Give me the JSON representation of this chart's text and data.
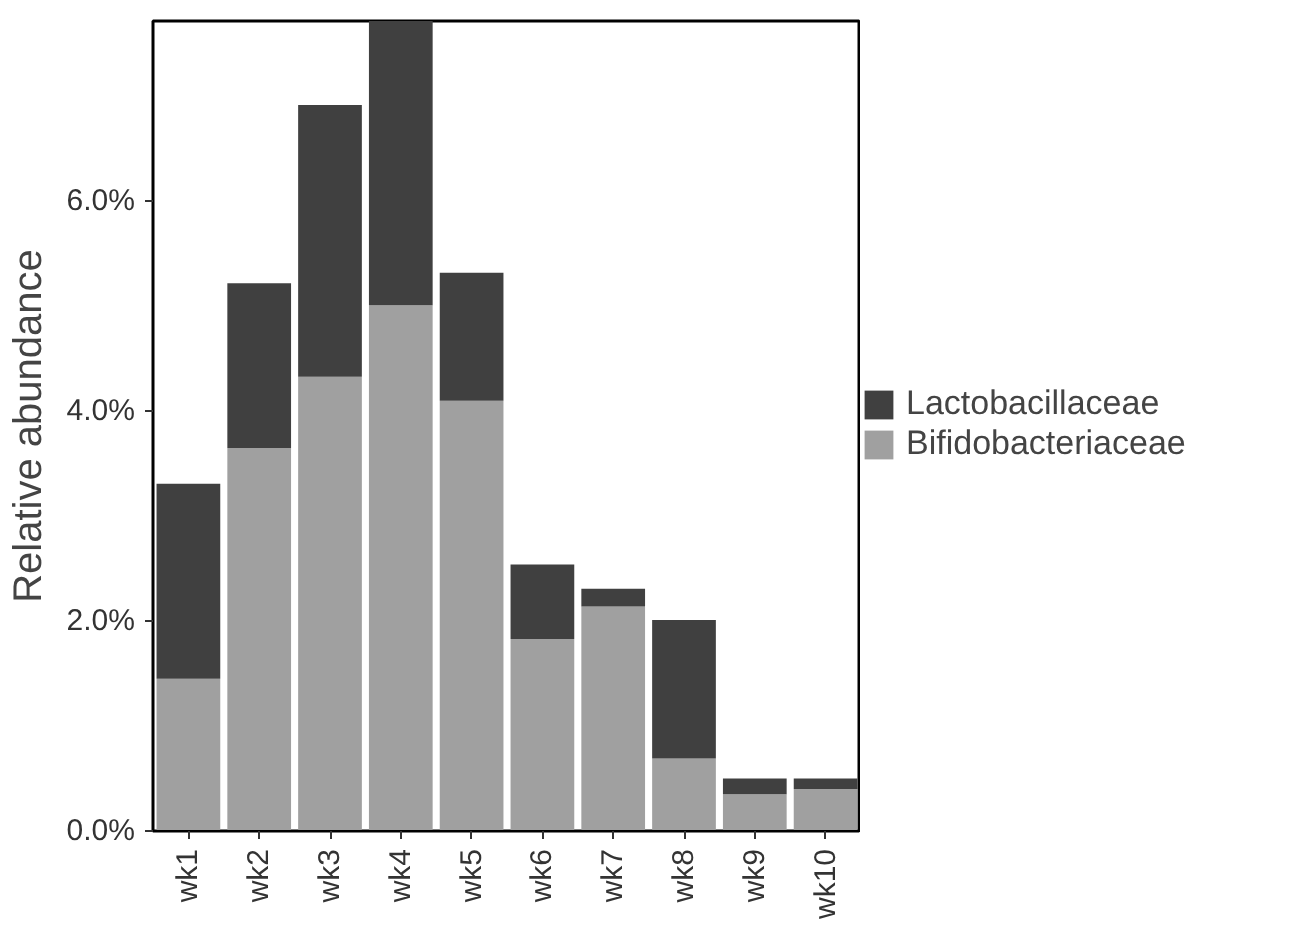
{
  "chart_data": {
    "type": "bar",
    "stacked": true,
    "ylabel": "Relative abundance",
    "categories": [
      "wk1",
      "wk2",
      "wk3",
      "wk4",
      "wk5",
      "wk6",
      "wk7",
      "wk8",
      "wk9",
      "wk10"
    ],
    "series": [
      {
        "name": "Bifidobacteriaceae",
        "color": "#a0a0a0",
        "values": [
          1.45,
          3.65,
          4.33,
          5.01,
          4.1,
          1.83,
          2.14,
          0.69,
          0.35,
          0.4
        ]
      },
      {
        "name": "Lactobacillaceae",
        "color": "#404040",
        "values": [
          1.86,
          1.57,
          2.59,
          2.71,
          1.22,
          0.71,
          0.17,
          1.32,
          0.15,
          0.1
        ]
      }
    ],
    "ylim": [
      0,
      7.72
    ],
    "yticks": [
      {
        "value": 0,
        "label": "0.0%"
      },
      {
        "value": 2,
        "label": "2.0%"
      },
      {
        "value": 4,
        "label": "4.0%"
      },
      {
        "value": 6,
        "label": "6.0%"
      }
    ],
    "grid": false,
    "legend": "right"
  }
}
